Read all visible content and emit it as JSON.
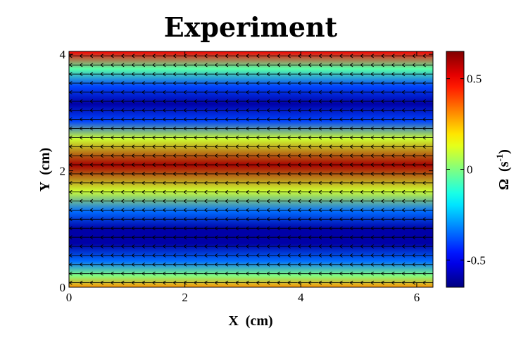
{
  "chart_data": {
    "type": "heatmap",
    "title": "Experiment",
    "xlabel": "X  (cm)",
    "ylabel": "Y  (cm)",
    "xlim": [
      0,
      6.28
    ],
    "ylim": [
      0,
      4.05
    ],
    "xticks": [
      0,
      2,
      4,
      6
    ],
    "yticks": [
      0,
      2,
      4
    ],
    "xtick_labels": [
      "0",
      "2",
      "4",
      "6"
    ],
    "ytick_labels": [
      "0",
      "2",
      "4"
    ],
    "colorbar": {
      "label_main": "Ω  (s",
      "label_exp": "-1",
      "label_close": ")",
      "range": [
        -0.65,
        0.65
      ],
      "ticks": [
        -0.5,
        0,
        0.5
      ],
      "tick_labels": [
        "-0.5",
        "0",
        "0.5"
      ]
    },
    "field": {
      "quantity": "vorticity",
      "units": "s^-1",
      "profile_y": [
        0,
        0.2,
        0.45,
        0.75,
        1.0,
        1.3,
        1.65,
        2.1,
        2.55,
        2.85,
        3.15,
        3.45,
        3.75,
        4.05
      ],
      "profile_omega": [
        0.3,
        0.0,
        -0.35,
        -0.6,
        -0.6,
        -0.35,
        0.1,
        0.6,
        0.1,
        -0.4,
        -0.6,
        -0.4,
        -0.05,
        0.5
      ],
      "arrow_direction": "negative-x",
      "arrow_rows": 26,
      "arrow_cols": 35
    }
  }
}
